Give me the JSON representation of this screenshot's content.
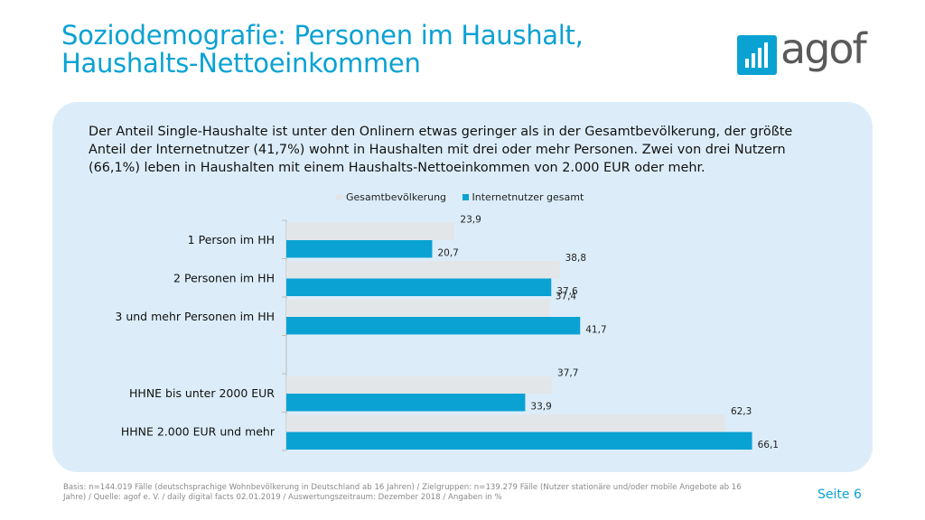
{
  "slide": {
    "title_line1": "Soziodemografie: Personen im Haushalt,",
    "title_line2": "Haushalts-Nettoeinkommen",
    "logo_text": "agof",
    "intro_text": "Der Anteil Single-Haushalte ist unter den Onlinern etwas geringer als in der Gesamtbevölkerung, der größte Anteil der Internetnutzer (41,7%) wohnt in Haushalten mit drei oder mehr Personen. Zwei von drei Nutzern (66,1%) leben in Haushalten mit einem Haushalts-Nettoeinkommen von 2.000 EUR oder mehr.",
    "footnote": "Basis: n=144.019 Fälle (deutschsprachige Wohnbevölkerung in Deutschland ab 16 Jahren) / Zielgruppen: n=139.279 Fälle (Nutzer stationäre und/oder mobile Angebote ab 16 Jahre) / Quelle: agof e. V. / daily digital facts 02.01.2019 / Auswertungszeitraum: Dezember 2018 / Angaben in %",
    "page_label": "Seite 6"
  },
  "colors": {
    "accent": "#0aa2d3",
    "series1": "#e3e6e9",
    "series2": "#0aa2d3",
    "panel": "#dcedf9"
  },
  "chart_data": {
    "type": "bar",
    "orientation": "horizontal",
    "categories": [
      "1 Person im HH",
      "2 Personen im HH",
      "3 und mehr Personen im HH",
      "",
      "HHNE bis unter 2000 EUR",
      "HHNE 2.000 EUR und mehr"
    ],
    "series": [
      {
        "name": "Gesamtbevölkerung",
        "values": [
          23.9,
          38.8,
          37.4,
          null,
          37.7,
          62.3
        ],
        "labels": [
          "23,9",
          "38,8",
          "37,4",
          "",
          "37,7",
          "62,3"
        ]
      },
      {
        "name": "Internetnutzer gesamt",
        "values": [
          20.7,
          37.6,
          41.7,
          null,
          33.9,
          66.1
        ],
        "labels": [
          "20,7",
          "37,6",
          "41,7",
          "",
          "33,9",
          "66,1"
        ]
      }
    ],
    "xlim": [
      0,
      80
    ],
    "legend": "top",
    "grid": false
  }
}
